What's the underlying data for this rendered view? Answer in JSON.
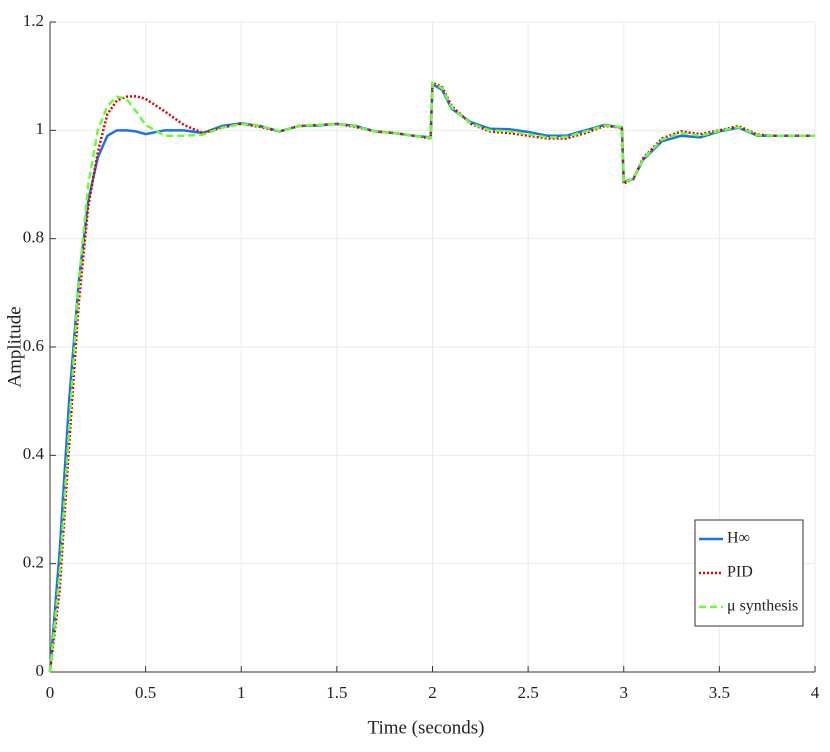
{
  "chart_data": {
    "type": "line",
    "xlabel": "Time (seconds)",
    "ylabel": "Amplitude",
    "x": [
      0,
      0.05,
      0.1,
      0.15,
      0.2,
      0.25,
      0.3,
      0.35,
      0.4,
      0.45,
      0.5,
      0.6,
      0.7,
      0.8,
      0.9,
      1.0,
      1.1,
      1.2,
      1.3,
      1.4,
      1.5,
      1.6,
      1.7,
      1.8,
      1.9,
      1.99,
      2.0,
      2.05,
      2.1,
      2.2,
      2.3,
      2.4,
      2.5,
      2.6,
      2.7,
      2.8,
      2.9,
      2.99,
      3.0,
      3.05,
      3.1,
      3.2,
      3.3,
      3.4,
      3.5,
      3.6,
      3.7,
      3.8,
      3.9,
      4.0
    ],
    "series": [
      {
        "name": "H∞",
        "color": "#1f6fe8",
        "dash": "solid",
        "values": [
          0,
          0.22,
          0.5,
          0.72,
          0.87,
          0.95,
          0.99,
          1.0,
          1.0,
          0.998,
          0.993,
          1.0,
          1.0,
          0.995,
          1.008,
          1.013,
          1.008,
          0.998,
          1.008,
          1.009,
          1.012,
          1.008,
          0.998,
          0.995,
          0.99,
          0.987,
          1.085,
          1.075,
          1.04,
          1.015,
          1.003,
          1.002,
          0.997,
          0.99,
          0.99,
          1.0,
          1.01,
          1.005,
          0.905,
          0.91,
          0.945,
          0.98,
          0.99,
          0.987,
          0.998,
          1.005,
          0.99,
          0.99,
          0.99,
          0.99
        ]
      },
      {
        "name": "PID",
        "color": "#e00000",
        "dash": "dotted",
        "values": [
          0,
          0.15,
          0.42,
          0.68,
          0.86,
          0.96,
          1.03,
          1.055,
          1.062,
          1.063,
          1.058,
          1.035,
          1.01,
          0.995,
          1.005,
          1.012,
          1.006,
          0.998,
          1.008,
          1.01,
          1.012,
          1.006,
          0.998,
          0.995,
          0.99,
          0.985,
          1.088,
          1.08,
          1.045,
          1.012,
          0.998,
          0.995,
          0.99,
          0.985,
          0.985,
          0.995,
          1.008,
          1.005,
          0.902,
          0.91,
          0.948,
          0.985,
          0.998,
          0.993,
          1.0,
          1.008,
          0.992,
          0.99,
          0.99,
          0.99
        ]
      },
      {
        "name": "μ synthesis",
        "color": "#66ff33",
        "dash": "dashed",
        "values": [
          0,
          0.18,
          0.45,
          0.72,
          0.9,
          1.0,
          1.045,
          1.062,
          1.058,
          1.035,
          1.01,
          0.99,
          0.99,
          0.992,
          1.005,
          1.012,
          1.008,
          0.998,
          1.008,
          1.01,
          1.012,
          1.007,
          0.998,
          0.995,
          0.99,
          0.986,
          1.087,
          1.078,
          1.042,
          1.013,
          1.0,
          0.998,
          0.993,
          0.987,
          0.988,
          0.998,
          1.009,
          1.006,
          0.903,
          0.91,
          0.946,
          0.983,
          0.995,
          0.99,
          0.999,
          1.006,
          0.991,
          0.99,
          0.99,
          0.99
        ]
      }
    ],
    "xlim": [
      0,
      4
    ],
    "xticks": [
      0,
      0.5,
      1,
      1.5,
      2,
      2.5,
      3,
      3.5,
      4
    ],
    "ylim": [
      0,
      1.2
    ],
    "yticks": [
      0,
      0.2,
      0.4,
      0.6,
      0.8,
      1,
      1.2
    ],
    "grid": true,
    "legend": "lower right"
  }
}
